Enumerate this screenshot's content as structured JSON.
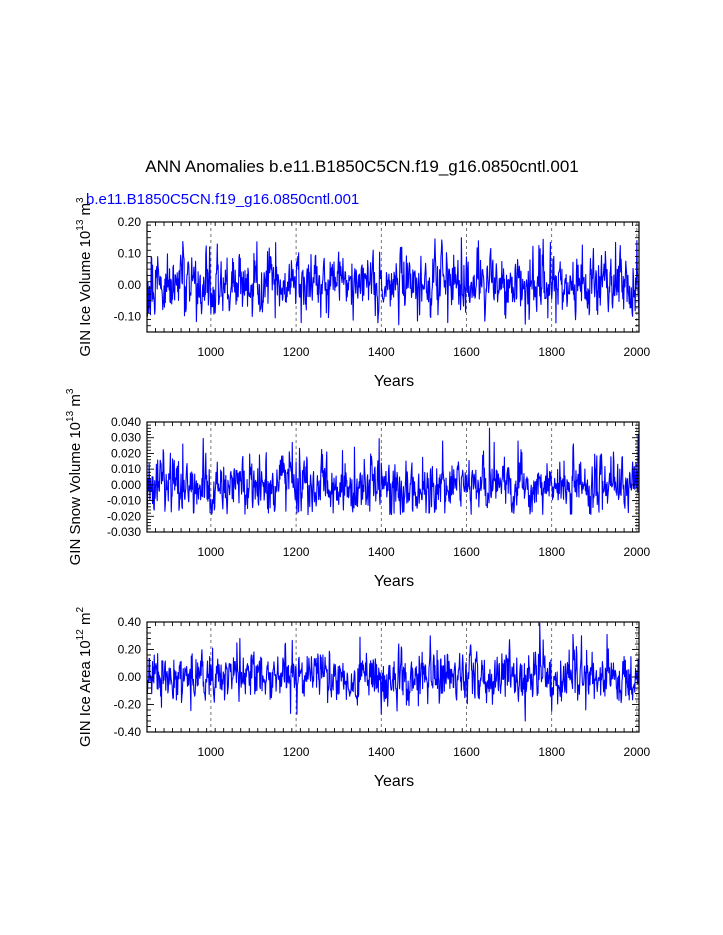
{
  "figure": {
    "title": "ANN Anomalies b.e11.B1850C5CN.f19_g16.0850cntl.001",
    "subtitle": "b.e11.B1850C5CN.f19_g16.0850cntl.001"
  },
  "colors": {
    "series": "#0000ff",
    "axes": "#000000",
    "grid": "#555555"
  },
  "chart_data": [
    {
      "type": "line",
      "title": "b.e11.B1850C5CN.f19_g16.0850cntl.001",
      "xlabel": "Years",
      "ylabel_main": "GIN Ice Volume 10",
      "ylabel_exp": "13",
      "ylabel_unit": " m",
      "ylabel_unit_exp": "3",
      "xlim": [
        850,
        2005
      ],
      "ylim": [
        -0.15,
        0.2
      ],
      "xticks": [
        1000,
        1200,
        1400,
        1600,
        1800,
        2000
      ],
      "xtick_labels": [
        "1000",
        "1200",
        "1400",
        "1600",
        "1800",
        "2000"
      ],
      "yticks": [
        -0.1,
        0.0,
        0.1,
        0.2
      ],
      "ytick_labels": [
        "-0.10",
        "0.00",
        "0.10",
        "0.20"
      ],
      "grid": "vertical dashed at major x ticks",
      "series": [
        {
          "name": "b.e11.B1850C5CN.f19_g16.0850cntl.001",
          "x_start": 850,
          "x_step": 1,
          "amplitude": 0.045,
          "clip": [
            -0.13,
            0.15
          ],
          "peaks": [
            [
              851,
              -0.1
            ],
            [
              860,
              0.09
            ],
            [
              934,
              0.138
            ],
            [
              1015,
              0.13
            ],
            [
              1212,
              -0.12
            ],
            [
              1448,
              0.12
            ],
            [
              1485,
              -0.115
            ],
            [
              1556,
              -0.12
            ],
            [
              1588,
              0.15
            ],
            [
              1628,
              0.14
            ],
            [
              1738,
              -0.125
            ],
            [
              1747,
              -0.11
            ],
            [
              1770,
              0.125
            ],
            [
              1797,
              0.135
            ],
            [
              1950,
              0.135
            ],
            [
              1990,
              -0.1
            ],
            [
              2000,
              0.14
            ],
            [
              2004,
              -0.05
            ]
          ]
        }
      ]
    },
    {
      "type": "line",
      "xlabel": "Years",
      "ylabel_main": "GIN Snow Volume 10",
      "ylabel_exp": "13",
      "ylabel_unit": " m",
      "ylabel_unit_exp": "3",
      "xlim": [
        850,
        2005
      ],
      "ylim": [
        -0.03,
        0.04
      ],
      "xticks": [
        1000,
        1200,
        1400,
        1600,
        1800,
        2000
      ],
      "xtick_labels": [
        "1000",
        "1200",
        "1400",
        "1600",
        "1800",
        "2000"
      ],
      "yticks": [
        -0.03,
        -0.02,
        -0.01,
        0.0,
        0.01,
        0.02,
        0.03,
        0.04
      ],
      "ytick_labels": [
        "-0.030",
        "-0.020",
        "-0.010",
        "0.000",
        "0.010",
        "0.020",
        "0.030",
        "0.040"
      ],
      "grid": "vertical dashed at major x ticks",
      "series": [
        {
          "name": "b.e11.B1850C5CN.f19_g16.0850cntl.001",
          "x_start": 850,
          "x_step": 1,
          "amplitude": 0.0085,
          "clip": [
            -0.019,
            0.036
          ],
          "peaks": [
            [
              851,
              -0.015
            ],
            [
              934,
              0.026
            ],
            [
              1202,
              -0.018
            ],
            [
              1337,
              0.024
            ],
            [
              1512,
              -0.018
            ],
            [
              1654,
              0.036
            ],
            [
              1665,
              0.027
            ],
            [
              1850,
              0.024
            ],
            [
              1891,
              -0.016
            ],
            [
              2003,
              0.032
            ],
            [
              2005,
              0.022
            ]
          ]
        }
      ]
    },
    {
      "type": "line",
      "xlabel": "Years",
      "ylabel_main": "GIN Ice Area 10",
      "ylabel_exp": "12",
      "ylabel_unit": " m",
      "ylabel_unit_exp": "2",
      "xlim": [
        850,
        2005
      ],
      "ylim": [
        -0.4,
        0.4
      ],
      "xticks": [
        1000,
        1200,
        1400,
        1600,
        1800,
        2000
      ],
      "xtick_labels": [
        "1000",
        "1200",
        "1400",
        "1600",
        "1800",
        "2000"
      ],
      "yticks": [
        -0.4,
        -0.2,
        0.0,
        0.2,
        0.4
      ],
      "ytick_labels": [
        "-0.40",
        "-0.20",
        "0.00",
        "0.20",
        "0.40"
      ],
      "grid": "vertical dashed at major x ticks",
      "series": [
        {
          "name": "b.e11.B1850C5CN.f19_g16.0850cntl.001",
          "x_start": 850,
          "x_step": 1,
          "amplitude": 0.085,
          "clip": [
            -0.32,
            0.39
          ],
          "peaks": [
            [
              851,
              -0.12
            ],
            [
              1068,
              0.28
            ],
            [
              1202,
              -0.27
            ],
            [
              1350,
              0.29
            ],
            [
              1400,
              -0.27
            ],
            [
              1515,
              0.3
            ],
            [
              1738,
              -0.32
            ],
            [
              1772,
              0.39
            ],
            [
              1780,
              0.27
            ],
            [
              1800,
              -0.25
            ],
            [
              1850,
              0.31
            ],
            [
              1870,
              0.3
            ],
            [
              1930,
              0.31
            ],
            [
              2004,
              -0.05
            ]
          ]
        }
      ]
    }
  ]
}
